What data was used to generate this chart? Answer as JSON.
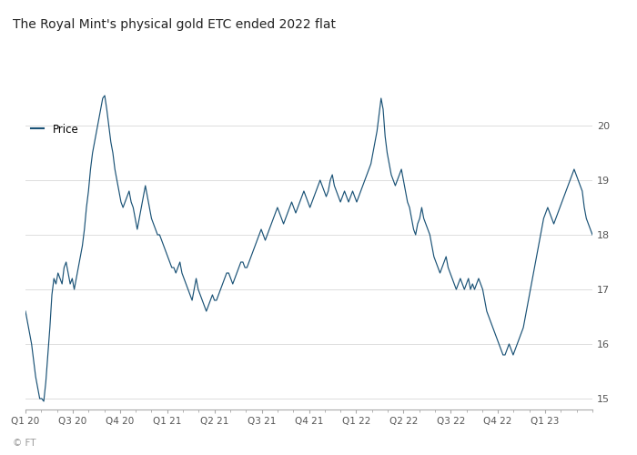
{
  "title": "The Royal Mint's physical gold ETC ended 2022 flat",
  "legend_label": "Price",
  "line_color": "#1a5276",
  "background_color": "#ffffff",
  "grid_color": "#dddddd",
  "ylim": [
    14.8,
    20.8
  ],
  "yticks": [
    15,
    16,
    17,
    18,
    19,
    20
  ],
  "tick_labels": [
    "Q1 20",
    "Q3 20",
    "Q4 20",
    "Q1 21",
    "Q2 21",
    "Q3 21",
    "Q4 21",
    "Q1 22",
    "Q2 22",
    "Q3 22",
    "Q4 22",
    "Q1 23"
  ],
  "price_data": [
    16.6,
    16.4,
    16.2,
    16.0,
    15.7,
    15.4,
    15.2,
    15.0,
    15.0,
    14.95,
    15.3,
    15.8,
    16.3,
    16.9,
    17.2,
    17.1,
    17.3,
    17.2,
    17.1,
    17.4,
    17.5,
    17.3,
    17.1,
    17.2,
    17.0,
    17.2,
    17.4,
    17.6,
    17.8,
    18.1,
    18.5,
    18.8,
    19.2,
    19.5,
    19.7,
    19.9,
    20.1,
    20.3,
    20.5,
    20.55,
    20.3,
    20.0,
    19.7,
    19.5,
    19.2,
    19.0,
    18.8,
    18.6,
    18.5,
    18.6,
    18.7,
    18.8,
    18.6,
    18.5,
    18.3,
    18.1,
    18.3,
    18.5,
    18.7,
    18.9,
    18.7,
    18.5,
    18.3,
    18.2,
    18.1,
    18.0,
    18.0,
    17.9,
    17.8,
    17.7,
    17.6,
    17.5,
    17.4,
    17.4,
    17.3,
    17.4,
    17.5,
    17.3,
    17.2,
    17.1,
    17.0,
    16.9,
    16.8,
    17.0,
    17.2,
    17.0,
    16.9,
    16.8,
    16.7,
    16.6,
    16.7,
    16.8,
    16.9,
    16.8,
    16.8,
    16.9,
    17.0,
    17.1,
    17.2,
    17.3,
    17.3,
    17.2,
    17.1,
    17.2,
    17.3,
    17.4,
    17.5,
    17.5,
    17.4,
    17.4,
    17.5,
    17.6,
    17.7,
    17.8,
    17.9,
    18.0,
    18.1,
    18.0,
    17.9,
    18.0,
    18.1,
    18.2,
    18.3,
    18.4,
    18.5,
    18.4,
    18.3,
    18.2,
    18.3,
    18.4,
    18.5,
    18.6,
    18.5,
    18.4,
    18.5,
    18.6,
    18.7,
    18.8,
    18.7,
    18.6,
    18.5,
    18.6,
    18.7,
    18.8,
    18.9,
    19.0,
    18.9,
    18.8,
    18.7,
    18.8,
    19.0,
    19.1,
    18.9,
    18.8,
    18.7,
    18.6,
    18.7,
    18.8,
    18.7,
    18.6,
    18.7,
    18.8,
    18.7,
    18.6,
    18.7,
    18.8,
    18.9,
    19.0,
    19.1,
    19.2,
    19.3,
    19.5,
    19.7,
    19.9,
    20.2,
    20.5,
    20.3,
    19.8,
    19.5,
    19.3,
    19.1,
    19.0,
    18.9,
    19.0,
    19.1,
    19.2,
    19.0,
    18.8,
    18.6,
    18.5,
    18.3,
    18.1,
    18.0,
    18.2,
    18.3,
    18.5,
    18.3,
    18.2,
    18.1,
    18.0,
    17.8,
    17.6,
    17.5,
    17.4,
    17.3,
    17.4,
    17.5,
    17.6,
    17.4,
    17.3,
    17.2,
    17.1,
    17.0,
    17.1,
    17.2,
    17.1,
    17.0,
    17.1,
    17.2,
    17.0,
    17.1,
    17.0,
    17.1,
    17.2,
    17.1,
    17.0,
    16.8,
    16.6,
    16.5,
    16.4,
    16.3,
    16.2,
    16.1,
    16.0,
    15.9,
    15.8,
    15.8,
    15.9,
    16.0,
    15.9,
    15.8,
    15.9,
    16.0,
    16.1,
    16.2,
    16.3,
    16.5,
    16.7,
    16.9,
    17.1,
    17.3,
    17.5,
    17.7,
    17.9,
    18.1,
    18.3,
    18.4,
    18.5,
    18.4,
    18.3,
    18.2,
    18.3,
    18.4,
    18.5,
    18.6,
    18.7,
    18.8,
    18.9,
    19.0,
    19.1,
    19.2,
    19.1,
    19.0,
    18.9,
    18.8,
    18.5,
    18.3,
    18.2,
    18.1,
    18.0
  ]
}
